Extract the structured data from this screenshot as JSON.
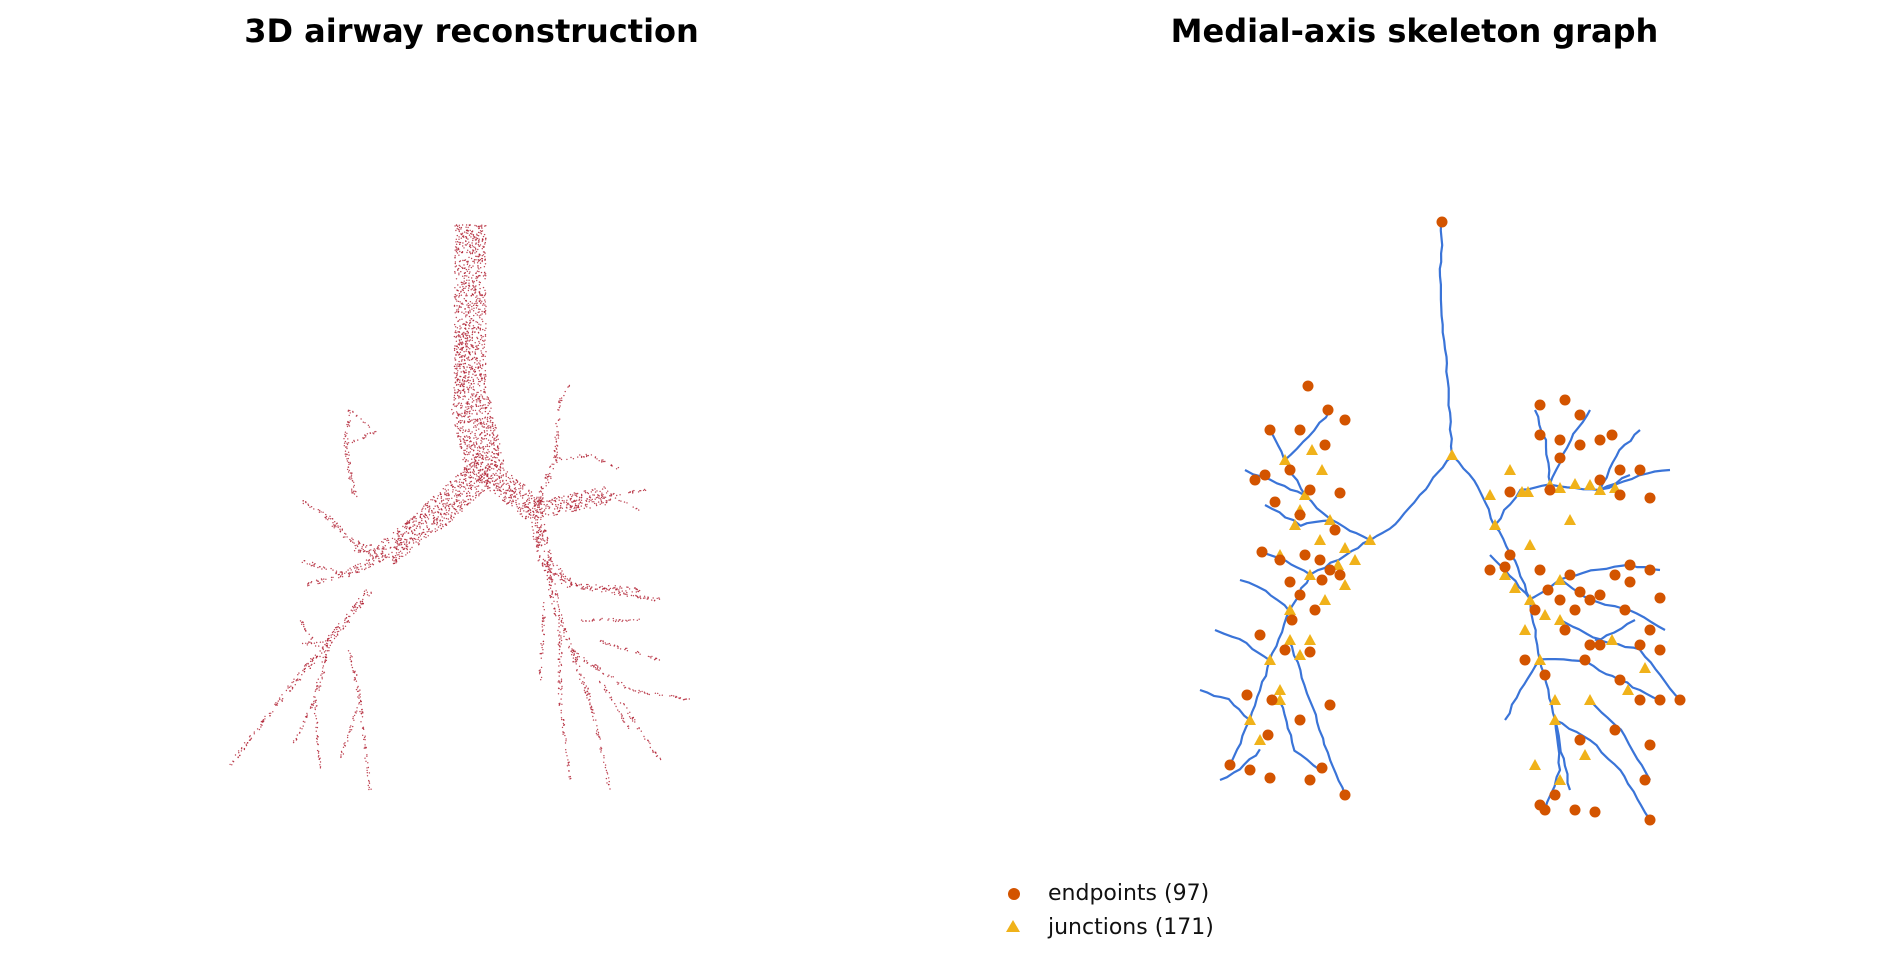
{
  "figure": {
    "left_panel": {
      "title": "3D airway reconstruction"
    },
    "right_panel": {
      "title": "Medial-axis skeleton graph"
    }
  },
  "legend": {
    "items": [
      {
        "label": "endpoints (97)",
        "marker": "circle",
        "color": "#d35400"
      },
      {
        "label": "junctions (171)",
        "marker": "triangle",
        "color": "#f0b21a"
      }
    ]
  },
  "colors": {
    "airway_points": "#b22234",
    "skeleton_edges": "#3a74d8",
    "endpoint": "#d35400",
    "junction": "#f0b21a"
  }
}
